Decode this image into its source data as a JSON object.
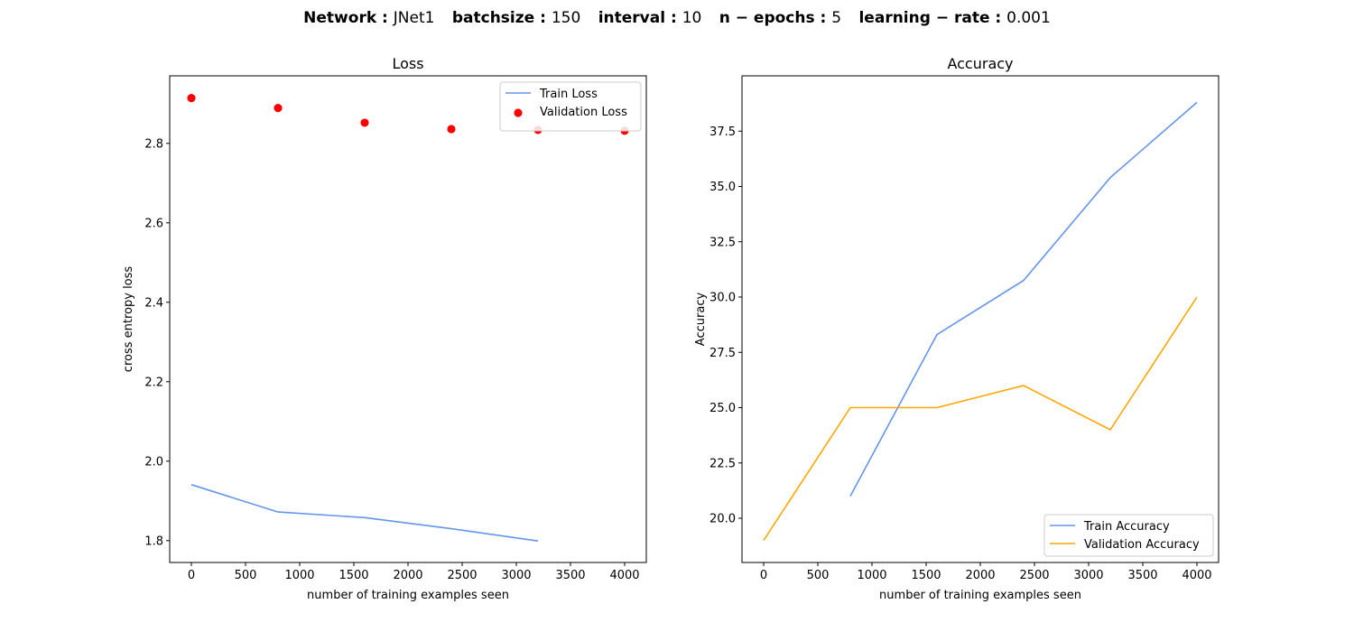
{
  "suptitle": {
    "parts": [
      {
        "key": "Network",
        "value": "JNet1"
      },
      {
        "key": "batchsize",
        "value": "150"
      },
      {
        "key": "interval",
        "value": "10"
      },
      {
        "key": "n − epochs",
        "value": "5"
      },
      {
        "key": "learning − rate",
        "value": "0.001"
      }
    ]
  },
  "chart_data": [
    {
      "type": "line",
      "title": "Loss",
      "xlabel": "number of training examples seen",
      "ylabel": "cross entropy loss",
      "xlim": [
        -200,
        4200
      ],
      "ylim": [
        1.745,
        2.97
      ],
      "xticks": [
        0,
        500,
        1000,
        1500,
        2000,
        2500,
        3000,
        3500,
        4000
      ],
      "yticks": [
        1.8,
        2.0,
        2.2,
        2.4,
        2.6,
        2.8
      ],
      "ytick_labels": [
        "1.8",
        "2.0",
        "2.2",
        "2.4",
        "2.6",
        "2.8"
      ],
      "legend_position": "upper right",
      "grid": false,
      "series": [
        {
          "name": "Train Loss",
          "kind": "line",
          "color": "#6495ED",
          "x": [
            0,
            800,
            1600,
            2400,
            3200
          ],
          "y": [
            1.941,
            1.872,
            1.858,
            1.83,
            1.799
          ]
        },
        {
          "name": "Validation Loss",
          "kind": "scatter",
          "color": "#ff0000",
          "x": [
            0,
            800,
            1600,
            2400,
            3200,
            4000
          ],
          "y": [
            2.914,
            2.889,
            2.852,
            2.836,
            2.834,
            2.832
          ]
        }
      ]
    },
    {
      "type": "line",
      "title": "Accuracy",
      "xlabel": "number of training examples seen",
      "ylabel": "Accuracy",
      "xlim": [
        -200,
        4200
      ],
      "ylim": [
        18.0,
        40.0
      ],
      "xticks": [
        0,
        500,
        1000,
        1500,
        2000,
        2500,
        3000,
        3500,
        4000
      ],
      "yticks": [
        20.0,
        22.5,
        25.0,
        27.5,
        30.0,
        32.5,
        35.0,
        37.5
      ],
      "ytick_labels": [
        "20.0",
        "22.5",
        "25.0",
        "27.5",
        "30.0",
        "32.5",
        "35.0",
        "37.5"
      ],
      "legend_position": "lower right",
      "grid": false,
      "series": [
        {
          "name": "Train Accuracy",
          "kind": "line",
          "color": "#6495ED",
          "x": [
            800,
            1600,
            2400,
            3200,
            4000
          ],
          "y": [
            21.0,
            28.3,
            30.75,
            35.4,
            38.8
          ]
        },
        {
          "name": "Validation Accuracy",
          "kind": "line",
          "color": "#FFA500",
          "x": [
            0,
            800,
            1600,
            2400,
            3200,
            4000
          ],
          "y": [
            19.0,
            25.0,
            25.0,
            26.0,
            24.0,
            30.0
          ]
        }
      ]
    }
  ]
}
